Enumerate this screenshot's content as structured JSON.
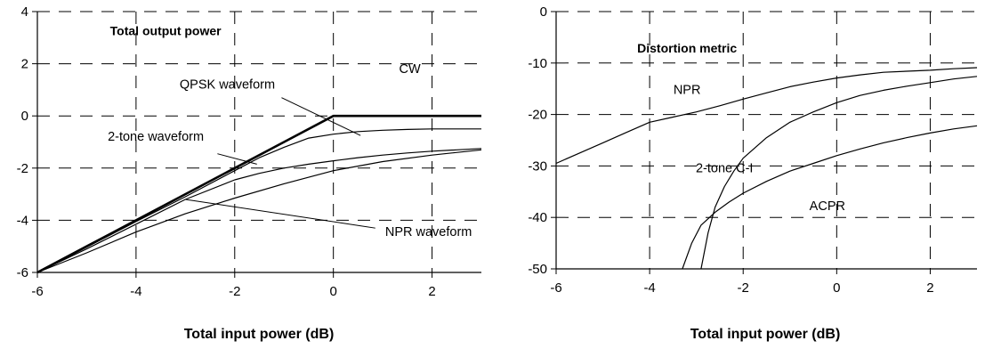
{
  "chart_data": [
    {
      "type": "line",
      "title": "Total output power",
      "xlabel": "Total input power (dB)",
      "ylabel": "",
      "xlim": [
        -6,
        3
      ],
      "ylim": [
        -6,
        4
      ],
      "x_ticks": [
        "-6",
        "-4",
        "-2",
        "0",
        "2"
      ],
      "y_ticks": [
        "4",
        "2",
        "0",
        "-2",
        "-4",
        "-6"
      ],
      "grid": "dashed",
      "series": [
        {
          "name": "CW",
          "points": [
            [
              -6,
              -6
            ],
            [
              -5,
              -5
            ],
            [
              -4,
              -4
            ],
            [
              -3,
              -3
            ],
            [
              -2,
              -2
            ],
            [
              -1,
              -1
            ],
            [
              0,
              0
            ],
            [
              1,
              0
            ],
            [
              2,
              0
            ],
            [
              3,
              0
            ]
          ]
        },
        {
          "name": "QPSK waveform",
          "points": [
            [
              -6,
              -6
            ],
            [
              -5,
              -5.03
            ],
            [
              -4,
              -4.05
            ],
            [
              -3,
              -3.1
            ],
            [
              -2,
              -2.1
            ],
            [
              -1.5,
              -1.6
            ],
            [
              -1,
              -1.2
            ],
            [
              -0.5,
              -0.85
            ],
            [
              0,
              -0.7
            ],
            [
              0.5,
              -0.6
            ],
            [
              1,
              -0.55
            ],
            [
              1.5,
              -0.52
            ],
            [
              2,
              -0.5
            ],
            [
              3,
              -0.5
            ]
          ]
        },
        {
          "name": "2-tone waveform",
          "points": [
            [
              -6,
              -6
            ],
            [
              -5,
              -5.1
            ],
            [
              -4,
              -4.15
            ],
            [
              -3,
              -3.2
            ],
            [
              -2,
              -2.45
            ],
            [
              -1.5,
              -2.2
            ],
            [
              -1,
              -2.0
            ],
            [
              -0.5,
              -1.85
            ],
            [
              0,
              -1.72
            ],
            [
              0.5,
              -1.6
            ],
            [
              1,
              -1.5
            ],
            [
              1.5,
              -1.42
            ],
            [
              2,
              -1.35
            ],
            [
              2.5,
              -1.3
            ],
            [
              3,
              -1.25
            ]
          ]
        },
        {
          "name": "NPR waveform",
          "points": [
            [
              -6,
              -6
            ],
            [
              -5,
              -5.25
            ],
            [
              -4,
              -4.45
            ],
            [
              -3,
              -3.75
            ],
            [
              -2,
              -3.15
            ],
            [
              -1,
              -2.6
            ],
            [
              0,
              -2.1
            ],
            [
              1,
              -1.75
            ],
            [
              2,
              -1.5
            ],
            [
              3,
              -1.3
            ]
          ]
        }
      ],
      "annotations": [
        "Total output power",
        "CW",
        "QPSK waveform",
        "2-tone waveform",
        "NPR waveform"
      ]
    },
    {
      "type": "line",
      "title": "Distortion metric",
      "xlabel": "Total input power (dB)",
      "ylabel": "",
      "xlim": [
        -6,
        3
      ],
      "ylim": [
        -50,
        0
      ],
      "x_ticks": [
        "-6",
        "-4",
        "-2",
        "0",
        "2"
      ],
      "y_ticks": [
        "0",
        "-10",
        "-20",
        "-30",
        "-40",
        "-50"
      ],
      "grid": "dashed",
      "series": [
        {
          "name": "NPR",
          "points": [
            [
              -6,
              -29.5
            ],
            [
              -5.5,
              -27.5
            ],
            [
              -5,
              -25.5
            ],
            [
              -4.5,
              -23.5
            ],
            [
              -4,
              -21.5
            ],
            [
              -3.5,
              -20.5
            ],
            [
              -3,
              -19.5
            ],
            [
              -2.5,
              -18.3
            ],
            [
              -2,
              -17
            ],
            [
              -1.5,
              -15.8
            ],
            [
              -1,
              -14.6
            ],
            [
              -0.5,
              -13.7
            ],
            [
              0,
              -12.9
            ],
            [
              0.5,
              -12.3
            ],
            [
              1,
              -11.8
            ],
            [
              1.5,
              -11.6
            ],
            [
              2,
              -11.4
            ],
            [
              2.5,
              -11.1
            ],
            [
              3,
              -10.9
            ]
          ]
        },
        {
          "name": "2-tone C-I",
          "points": [
            [
              -2.9,
              -50
            ],
            [
              -2.75,
              -43
            ],
            [
              -2.6,
              -38
            ],
            [
              -2.4,
              -34
            ],
            [
              -2.2,
              -31
            ],
            [
              -2,
              -28.5
            ],
            [
              -1.5,
              -24.5
            ],
            [
              -1,
              -21.5
            ],
            [
              -0.5,
              -19.5
            ],
            [
              0,
              -17.7
            ],
            [
              0.5,
              -16.3
            ],
            [
              1,
              -15.3
            ],
            [
              1.5,
              -14.5
            ],
            [
              2,
              -13.8
            ],
            [
              2.5,
              -13.1
            ],
            [
              3,
              -12.6
            ]
          ]
        },
        {
          "name": "ACPR",
          "points": [
            [
              -3.3,
              -50
            ],
            [
              -3.1,
              -45
            ],
            [
              -2.9,
              -41.5
            ],
            [
              -2.6,
              -39
            ],
            [
              -2.3,
              -37
            ],
            [
              -2,
              -35.3
            ],
            [
              -1.5,
              -33
            ],
            [
              -1,
              -31
            ],
            [
              -0.5,
              -29.5
            ],
            [
              0,
              -28
            ],
            [
              0.5,
              -26.7
            ],
            [
              1,
              -25.5
            ],
            [
              1.5,
              -24.5
            ],
            [
              2,
              -23.6
            ],
            [
              2.5,
              -22.8
            ],
            [
              3,
              -22.2
            ]
          ]
        }
      ],
      "annotations": [
        "Distortion metric",
        "NPR",
        "2-tone C-I",
        "ACPR"
      ]
    }
  ]
}
